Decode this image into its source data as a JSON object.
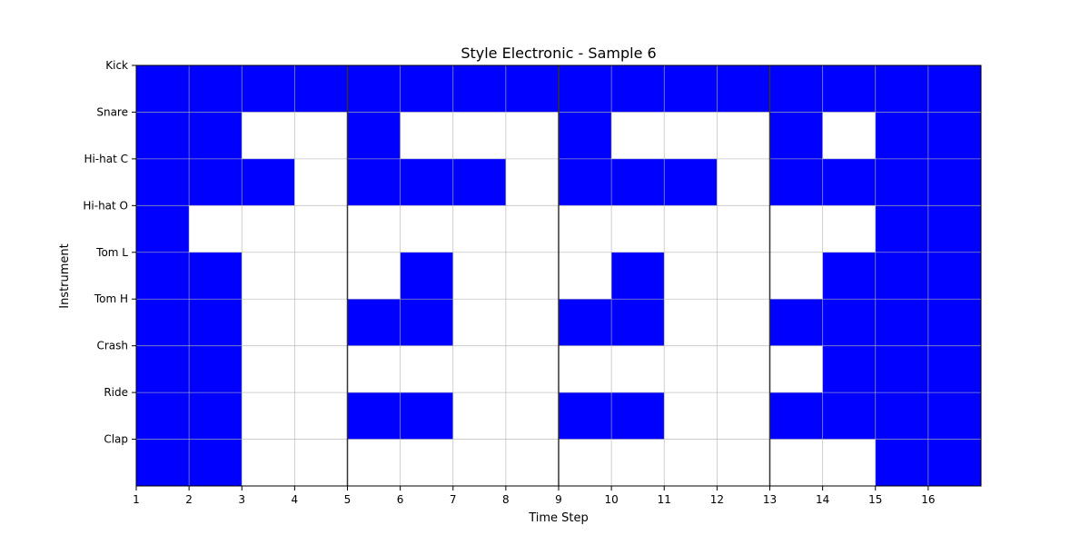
{
  "chart_data": {
    "type": "heatmap",
    "title": "Style Electronic - Sample 6",
    "xlabel": "Time Step",
    "ylabel": "Instrument",
    "x_ticks": [
      "1",
      "2",
      "3",
      "4",
      "5",
      "6",
      "7",
      "8",
      "9",
      "10",
      "11",
      "12",
      "13",
      "14",
      "15",
      "16"
    ],
    "y_ticks": [
      "Kick",
      "Snare",
      "Hi-hat C",
      "Hi-hat O",
      "Tom L",
      "Tom H",
      "Crash",
      "Ride",
      "Clap"
    ],
    "xlim": [
      1,
      17
    ],
    "beat_lines": [
      5,
      9,
      13
    ],
    "grid": true,
    "colors": {
      "on": "#0000ff",
      "off": "#ffffff",
      "grid": "#b0b0b0",
      "beat_line": "#333333"
    },
    "rows": [
      [
        1,
        1,
        1,
        1,
        1,
        1,
        1,
        1,
        1,
        1,
        1,
        1,
        1,
        1,
        1,
        1
      ],
      [
        1,
        1,
        0,
        0,
        1,
        0,
        0,
        0,
        1,
        0,
        0,
        0,
        1,
        0,
        1,
        1
      ],
      [
        1,
        1,
        1,
        0,
        1,
        1,
        1,
        0,
        1,
        1,
        1,
        0,
        1,
        1,
        1,
        1
      ],
      [
        1,
        0,
        0,
        0,
        0,
        0,
        0,
        0,
        0,
        0,
        0,
        0,
        0,
        0,
        1,
        1
      ],
      [
        1,
        1,
        0,
        0,
        0,
        1,
        0,
        0,
        0,
        1,
        0,
        0,
        0,
        1,
        1,
        1
      ],
      [
        1,
        1,
        0,
        0,
        1,
        1,
        0,
        0,
        1,
        1,
        0,
        0,
        1,
        1,
        1,
        1
      ],
      [
        1,
        1,
        0,
        0,
        0,
        0,
        0,
        0,
        0,
        0,
        0,
        0,
        0,
        1,
        1,
        1
      ],
      [
        1,
        1,
        0,
        0,
        1,
        1,
        0,
        0,
        1,
        1,
        0,
        0,
        1,
        1,
        1,
        1
      ],
      [
        1,
        1,
        0,
        0,
        0,
        0,
        0,
        0,
        0,
        0,
        0,
        0,
        0,
        0,
        1,
        1
      ]
    ]
  }
}
